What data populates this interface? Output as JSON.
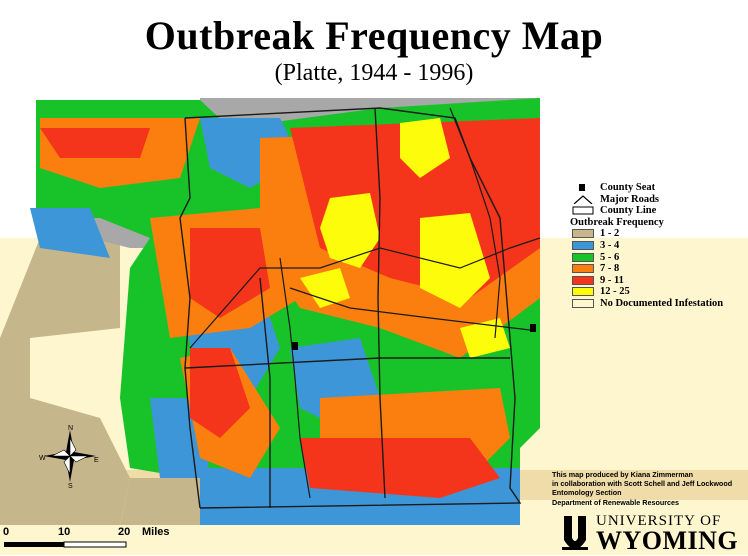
{
  "title": "Outbreak Frequency Map",
  "subtitle": "(Platte, 1944 - 1996)",
  "legend": {
    "county_seat": "County Seat",
    "major_roads": "Major Roads",
    "county_line": "County Line",
    "freq_title": "Outbreak Frequency",
    "classes": [
      {
        "label": "1 - 2",
        "color": "#c6b68c"
      },
      {
        "label": "3 - 4",
        "color": "#3d96d8"
      },
      {
        "label": "5 - 6",
        "color": "#18c32a"
      },
      {
        "label": "7 - 8",
        "color": "#fb7f0f"
      },
      {
        "label": "9 - 11",
        "color": "#f5351b"
      },
      {
        "label": "12 - 25",
        "color": "#fdfd0b"
      },
      {
        "label": "No Documented Infestation",
        "color": "#fdf6cf"
      }
    ]
  },
  "credits": [
    "This map produced by Kiana Zimmerman",
    "in collaboration with Scott Schell and Jeff Lockwood",
    "Entomology Section",
    "Department of Renewable Resources"
  ],
  "logo": {
    "line1": "UNIVERSITY OF",
    "line2": "WYOMING"
  },
  "compass": {
    "n": "N",
    "s": "S",
    "e": "E",
    "w": "W"
  },
  "scale": {
    "t0": "0",
    "t10": "10",
    "t20": "20",
    "unit": "Miles"
  }
}
